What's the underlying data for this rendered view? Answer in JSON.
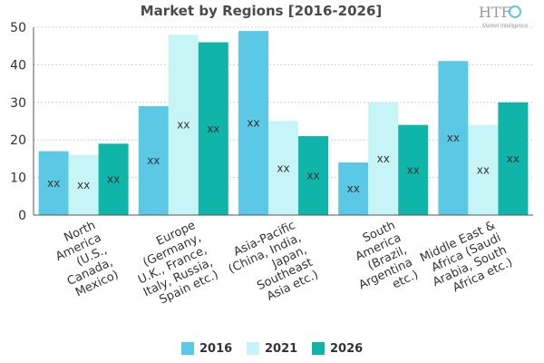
{
  "logo": {
    "text": "HTF",
    "subtext": "Market Intelligence"
  },
  "chart_data": {
    "type": "bar",
    "title": "Market by Regions [2016-2026]",
    "xlabel": "",
    "ylabel": "",
    "ylim": [
      0,
      50
    ],
    "yticks": [
      0,
      10,
      20,
      30,
      40,
      50
    ],
    "grid": true,
    "legend_position": "bottom",
    "categories": [
      [
        "North",
        "America",
        "(U.S.,",
        "Canada,",
        "Mexico)"
      ],
      [
        "Europe",
        "(Germany,",
        "U.K., France,",
        "Italy, Russia,",
        "Spain etc.)"
      ],
      [
        "Asia-Pacific",
        "(China, India,",
        "Japan,",
        "Southeast",
        "Asia etc.)"
      ],
      [
        "South",
        "America",
        "(Brazil,",
        "Argentina",
        "etc.)"
      ],
      [
        "Middle East &",
        "Africa (Saudi",
        "Arabia, South",
        "Africa etc.)"
      ]
    ],
    "series": [
      {
        "name": "2016",
        "color": "#5bc8e6",
        "values": [
          17,
          29,
          49,
          14,
          41
        ]
      },
      {
        "name": "2021",
        "color": "#c7f5f7",
        "values": [
          16,
          48,
          25,
          30,
          24
        ]
      },
      {
        "name": "2026",
        "color": "#0fb5a8",
        "values": [
          19,
          46,
          21,
          24,
          30
        ]
      }
    ],
    "data_label": "xx"
  }
}
